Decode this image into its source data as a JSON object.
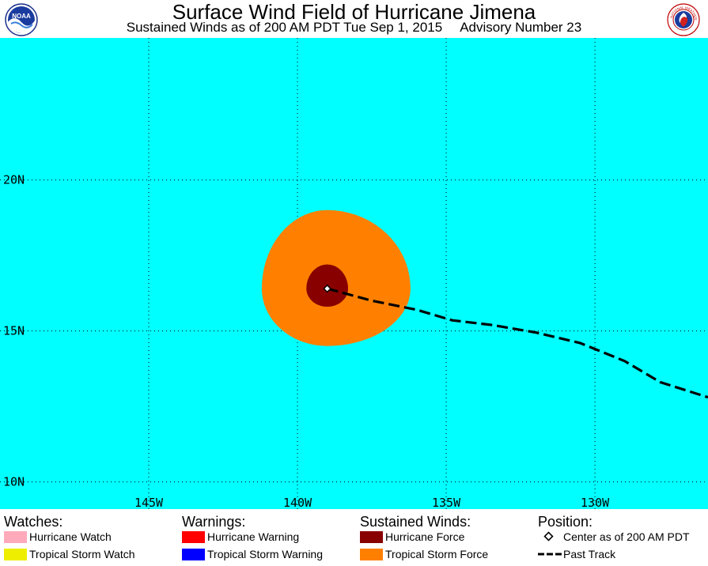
{
  "header": {
    "title": "Surface Wind Field of Hurricane Jimena",
    "subtitle": "Sustained Winds as of 200 AM PDT Tue Sep 1, 2015",
    "advisory": "Advisory Number 23"
  },
  "logos": {
    "left": "NOAA",
    "right": "NATIONAL WEATHER SERVICE"
  },
  "map": {
    "ocean_color": "#00ffff",
    "lat_labels": [
      "20N",
      "15N",
      "10N"
    ],
    "lon_labels": [
      "145W",
      "140W",
      "135W",
      "130W"
    ],
    "lat_lines": [
      20,
      15,
      10
    ],
    "lon_lines": [
      145,
      140,
      135,
      130
    ],
    "lon_range": [
      150,
      126.2
    ],
    "lat_range": [
      24.7,
      9.1
    ],
    "center": {
      "lon": 139,
      "lat": 16.4
    },
    "tropical_storm_force_radius_deg": {
      "north": 2.6,
      "south": 1.9,
      "east": 2.8,
      "west": 2.2
    },
    "hurricane_force_radius_deg": {
      "north": 0.8,
      "south": 0.6,
      "east": 0.7,
      "west": 0.7
    },
    "past_track": [
      [
        139,
        16.4
      ],
      [
        137.5,
        16.0
      ],
      [
        136.0,
        15.7
      ],
      [
        134.8,
        15.35
      ],
      [
        133.5,
        15.2
      ],
      [
        132.0,
        14.95
      ],
      [
        130.5,
        14.6
      ],
      [
        129.0,
        14.0
      ],
      [
        127.8,
        13.3
      ],
      [
        126.2,
        12.8
      ]
    ]
  },
  "legend": {
    "watches": {
      "heading": "Watches:",
      "items": [
        {
          "label": "Hurricane Watch",
          "color": "#ffaabb"
        },
        {
          "label": "Tropical Storm Watch",
          "color": "#eeee00"
        }
      ]
    },
    "warnings": {
      "heading": "Warnings:",
      "items": [
        {
          "label": "Hurricane Warning",
          "color": "#ff0000"
        },
        {
          "label": "Tropical Storm Warning",
          "color": "#0000ff"
        }
      ]
    },
    "winds": {
      "heading": "Sustained Winds:",
      "items": [
        {
          "label": "Hurricane Force",
          "color": "#880000"
        },
        {
          "label": "Tropical Storm Force",
          "color": "#ff8000"
        }
      ]
    },
    "position": {
      "heading": "Position:",
      "center_label": "Center as of 200 AM PDT",
      "track_label": "Past Track"
    }
  }
}
